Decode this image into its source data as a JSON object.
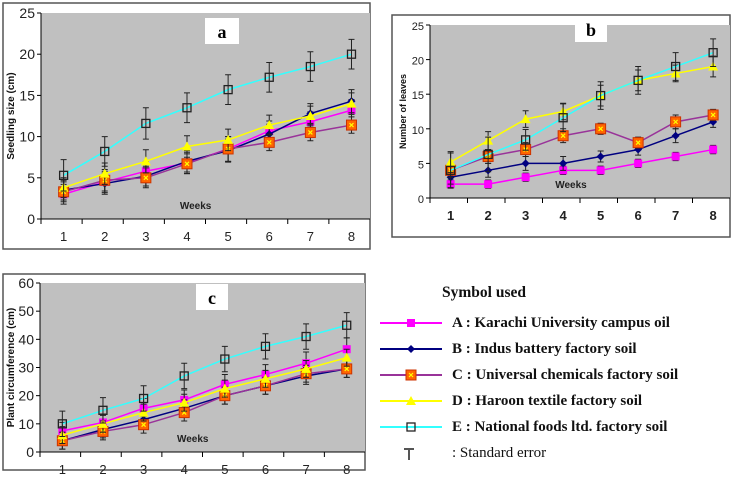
{
  "chart_data": [
    {
      "type": "line",
      "panel_label": "a",
      "xlabel": "Weeks",
      "ylabel": "Seedling size (cm)",
      "categories": [
        "1",
        "2",
        "3",
        "4",
        "5",
        "6",
        "7",
        "8"
      ],
      "ylim": [
        0,
        25
      ],
      "yticks": [
        0,
        5,
        10,
        15,
        20,
        25
      ],
      "grid": false,
      "series": [
        {
          "key": "A",
          "values": [
            3.0,
            4.5,
            5.8,
            6.8,
            8.5,
            10.7,
            11.8,
            13.2
          ],
          "error": [
            1.2,
            1.3,
            1.2,
            1.3,
            1.5,
            1.2,
            1.2,
            1.3
          ]
        },
        {
          "key": "B",
          "values": [
            3.5,
            4.3,
            5.2,
            7.0,
            8.3,
            10.3,
            12.8,
            14.3
          ],
          "error": [
            1.2,
            1.3,
            1.2,
            1.3,
            1.4,
            1.2,
            1.2,
            1.4
          ]
        },
        {
          "key": "C",
          "values": [
            3.3,
            4.7,
            5.0,
            6.7,
            8.5,
            9.3,
            10.5,
            11.4
          ],
          "error": [
            1.2,
            1.3,
            1.2,
            1.2,
            1.5,
            1.0,
            1.0,
            1.0
          ]
        },
        {
          "key": "D",
          "values": [
            3.8,
            5.5,
            7.0,
            8.8,
            9.6,
            11.4,
            12.5,
            14.0
          ],
          "error": [
            1.2,
            1.3,
            1.4,
            1.3,
            1.3,
            1.2,
            1.2,
            1.3
          ]
        },
        {
          "key": "E",
          "values": [
            5.3,
            8.2,
            11.6,
            13.5,
            15.7,
            17.2,
            18.5,
            20.0
          ],
          "error": [
            1.9,
            1.8,
            1.9,
            1.8,
            1.8,
            1.8,
            1.8,
            1.8
          ]
        }
      ]
    },
    {
      "type": "line",
      "panel_label": "b",
      "xlabel": "Weeks",
      "ylabel": "Number of leaves",
      "categories": [
        "1",
        "2",
        "3",
        "4",
        "5",
        "6",
        "7",
        "8"
      ],
      "ylim": [
        0,
        25
      ],
      "yticks": [
        0,
        5,
        10,
        15,
        20,
        25
      ],
      "grid": false,
      "series": [
        {
          "key": "A",
          "values": [
            2,
            2,
            3,
            4,
            4,
            5,
            6,
            7
          ],
          "error": [
            0.6,
            0.6,
            0.6,
            0.6,
            0.6,
            0.6,
            0.6,
            0.6
          ]
        },
        {
          "key": "B",
          "values": [
            3,
            4,
            5,
            5,
            6,
            7,
            9,
            11
          ],
          "error": [
            1.0,
            1.0,
            1.0,
            1.0,
            0.8,
            0.8,
            1.0,
            0.8
          ]
        },
        {
          "key": "C",
          "values": [
            4,
            6,
            7,
            9,
            10,
            8,
            11,
            12
          ],
          "error": [
            1.0,
            1.0,
            1.0,
            1.0,
            0.8,
            0.8,
            1.0,
            0.8
          ]
        },
        {
          "key": "D",
          "values": [
            5.2,
            8.3,
            11.4,
            12.5,
            14.8,
            17,
            18,
            19
          ],
          "error": [
            1.5,
            1.3,
            1.2,
            1.2,
            1.5,
            1.5,
            1.2,
            1.5
          ]
        },
        {
          "key": "E",
          "values": [
            4,
            6.3,
            8.4,
            11.6,
            14.8,
            17,
            19,
            21
          ],
          "error": [
            2.5,
            2.5,
            1.5,
            2.0,
            2.0,
            2.0,
            2.0,
            2.0
          ]
        }
      ]
    },
    {
      "type": "line",
      "panel_label": "c",
      "xlabel": "Weeks",
      "ylabel": "Plant circumference (cm)",
      "categories": [
        "1",
        "2",
        "3",
        "4",
        "5",
        "6",
        "7",
        "8"
      ],
      "ylim": [
        0,
        60
      ],
      "yticks": [
        0,
        10,
        20,
        30,
        40,
        50,
        60
      ],
      "grid": false,
      "series": [
        {
          "key": "A",
          "values": [
            7.5,
            10.5,
            15.5,
            18.5,
            24,
            27.5,
            31.5,
            36.5
          ],
          "error": [
            3,
            3,
            3.5,
            3.5,
            3.5,
            3.5,
            4,
            4
          ]
        },
        {
          "key": "B",
          "values": [
            4,
            8,
            11.5,
            15.5,
            20,
            23.5,
            27,
            29.5
          ],
          "error": [
            3,
            3,
            3,
            3,
            3,
            3,
            3,
            3
          ]
        },
        {
          "key": "C",
          "values": [
            4,
            7.3,
            9.7,
            14,
            20,
            23.5,
            27.8,
            29.5
          ],
          "error": [
            3,
            3,
            3,
            3,
            3,
            3,
            3,
            3
          ]
        },
        {
          "key": "D",
          "values": [
            6,
            10,
            14,
            17.5,
            22.5,
            26,
            29.5,
            33.5
          ],
          "error": [
            3,
            3,
            3,
            3,
            3,
            3,
            3,
            3
          ]
        },
        {
          "key": "E",
          "values": [
            10,
            14.8,
            19,
            27,
            33,
            37.5,
            41,
            45
          ],
          "error": [
            4.5,
            4.5,
            4.5,
            4.5,
            4.5,
            4.5,
            4.5,
            4.5
          ]
        }
      ]
    }
  ],
  "legend": {
    "title": "Symbol used",
    "items": [
      {
        "key": "A",
        "label": "A : Karachi University campus oil",
        "color": "#ff00ff",
        "marker": "square"
      },
      {
        "key": "B",
        "label": "B : Indus battery factory soil",
        "color": "#000080",
        "marker": "diamond"
      },
      {
        "key": "C",
        "label": "C : Universal chemicals factory soil",
        "color": "#993399",
        "marker": "orange-square-x",
        "fill": "#ff6600"
      },
      {
        "key": "D",
        "label": "D :  Haroon textile factory soil",
        "color": "#ffff00",
        "marker": "triangle"
      },
      {
        "key": "E",
        "label": "E  :  National foods ltd. factory soil",
        "color": "#33ffff",
        "marker": "open-square"
      }
    ],
    "error_label": ": Standard error"
  },
  "colors": {
    "plot_bg": "#c0c0c0",
    "error_bar": "#222222"
  }
}
